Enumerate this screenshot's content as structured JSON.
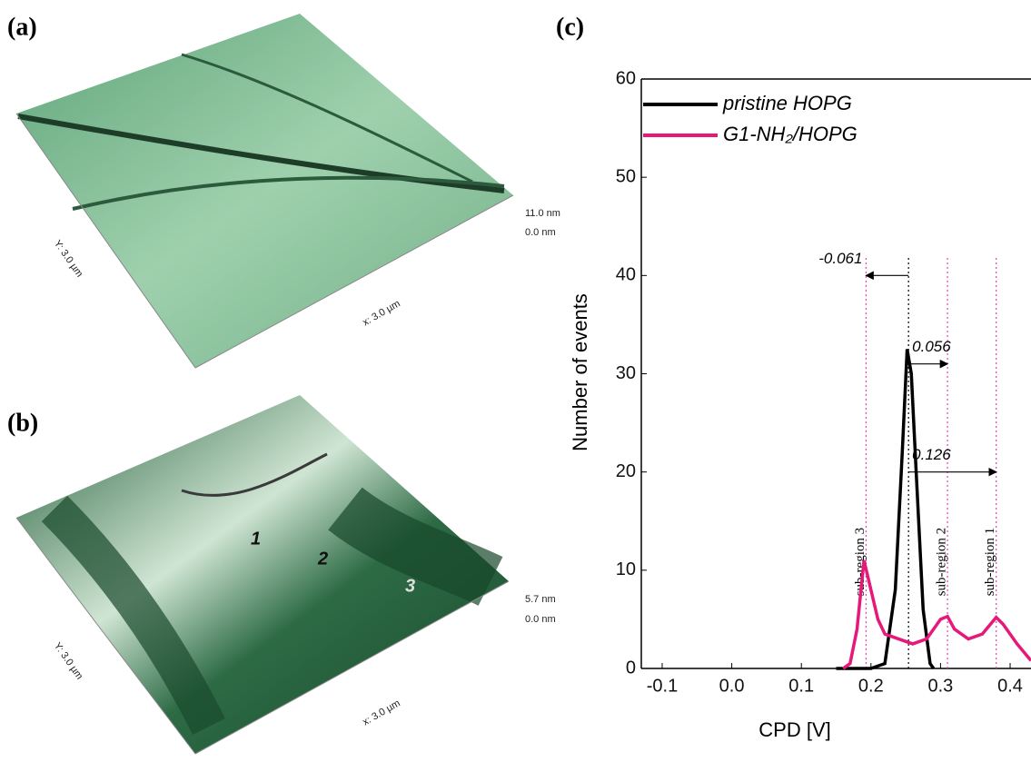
{
  "panels": [
    {
      "label": "(a)",
      "scale_max": "11.0 nm",
      "scale_min": "0.0 nm",
      "y_axis": "Y: 3.0 µm",
      "x_axis": "x: 3.0 µm"
    },
    {
      "label": "(b)",
      "scale_max": "5.7 nm",
      "scale_min": "0.0 nm",
      "y_axis": "Y: 3.0 µm",
      "x_axis": "x: 3.0 µm",
      "regions": [
        "1",
        "2",
        "3"
      ]
    }
  ],
  "chart_data": {
    "type": "line",
    "panel_label": "(c)",
    "x_label": "CPD [V]",
    "y_label": "Number of events",
    "xlim": [
      -0.13,
      0.43
    ],
    "ylim": [
      0,
      60
    ],
    "xticks": [
      -0.1,
      {
        "value": 0,
        "label": "0.0"
      },
      0.1,
      0.2,
      0.3,
      0.4
    ],
    "yticks": [
      0,
      10,
      20,
      30,
      40,
      50,
      60
    ],
    "legend": "upper-left",
    "series": [
      {
        "name": "pristine HOPG",
        "color": "#000000",
        "x": [
          0.15,
          0.2,
          0.22,
          0.235,
          0.245,
          0.252,
          0.258,
          0.265,
          0.275,
          0.285,
          0.29
        ],
        "values": [
          0,
          0,
          0.5,
          8,
          22,
          32.5,
          30,
          20,
          6,
          0.5,
          0
        ]
      },
      {
        "name": "G1-NH₂/HOPG",
        "color": "#e6197a",
        "x": [
          0.16,
          0.17,
          0.18,
          0.19,
          0.2,
          0.21,
          0.22,
          0.24,
          0.26,
          0.28,
          0.3,
          0.31,
          0.32,
          0.34,
          0.36,
          0.38,
          0.39,
          0.41,
          0.43
        ],
        "values": [
          0,
          0.5,
          4,
          11,
          8,
          5,
          3.5,
          3,
          2.5,
          3,
          5,
          5.3,
          4,
          3,
          3.5,
          5.2,
          4.5,
          2.5,
          0.8
        ]
      }
    ],
    "reference_lines": [
      {
        "value": 0.193,
        "color": "#e040c0",
        "label": "sub-region 3"
      },
      {
        "value": 0.254,
        "color": "#000000"
      },
      {
        "value": 0.31,
        "color": "#e040c0",
        "label": "sub-region 2"
      },
      {
        "value": 0.38,
        "color": "#e040c0",
        "label": "sub-region 1"
      }
    ],
    "annotations": [
      {
        "text": "-0.061",
        "from": 0.254,
        "to": 0.193,
        "y": 40
      },
      {
        "text": "0.056",
        "from": 0.254,
        "to": 0.31,
        "y": 31
      },
      {
        "text": "0.126",
        "from": 0.254,
        "to": 0.38,
        "y": 20
      }
    ]
  }
}
